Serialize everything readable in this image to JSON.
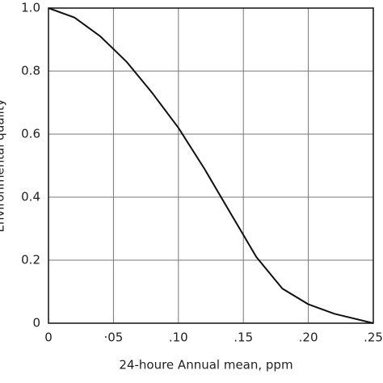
{
  "chart_data": {
    "type": "line",
    "xlabel": "24-houre Annual mean, ppm",
    "ylabel": "Environmental quality",
    "x": [
      0,
      0.02,
      0.04,
      0.05,
      0.06,
      0.08,
      0.1,
      0.12,
      0.14,
      0.15,
      0.16,
      0.18,
      0.2,
      0.22,
      0.25
    ],
    "values": [
      1.0,
      0.97,
      0.91,
      0.87,
      0.83,
      0.73,
      0.62,
      0.49,
      0.35,
      0.28,
      0.21,
      0.11,
      0.06,
      0.03,
      0.0
    ],
    "color": "#111111",
    "xlim": [
      0,
      0.25
    ],
    "ylim": [
      0,
      1
    ],
    "xticks": [
      0,
      {
        "value": 0.05,
        "label": "·05"
      },
      {
        "value": 0.1,
        "label": ".10"
      },
      {
        "value": 0.15,
        "label": ".15"
      },
      {
        "value": 0.2,
        "label": ".20"
      },
      {
        "value": 0.25,
        "label": ".25"
      }
    ],
    "yticks": [
      0,
      0.2,
      0.4,
      0.6,
      0.8,
      {
        "value": 1,
        "label": "1.0"
      }
    ],
    "grid": true
  }
}
